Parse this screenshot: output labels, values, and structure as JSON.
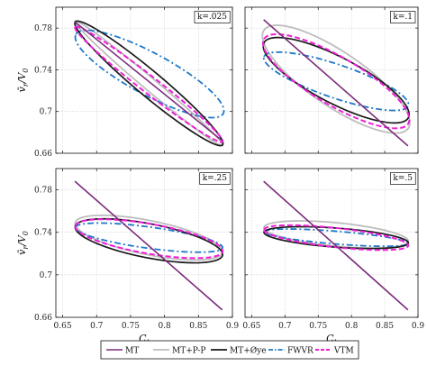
{
  "chart_data": {
    "type": "line",
    "xlabel": "C_t",
    "ylabel": "v̄_r/V_0",
    "xlim": [
      0.64,
      0.9
    ],
    "ylim": [
      0.66,
      0.8
    ],
    "xticks": [
      {
        "v": 0.65,
        "label": "0.65"
      },
      {
        "v": 0.7,
        "label": "0.7"
      },
      {
        "v": 0.75,
        "label": "0.75"
      },
      {
        "v": 0.8,
        "label": "0.8"
      },
      {
        "v": 0.85,
        "label": "0.85"
      },
      {
        "v": 0.9,
        "label": "0.9"
      }
    ],
    "yticks": [
      {
        "v": 0.66,
        "label": "0.66"
      },
      {
        "v": 0.7,
        "label": "0.7"
      },
      {
        "v": 0.74,
        "label": "0.74"
      },
      {
        "v": 0.78,
        "label": "0.78"
      }
    ],
    "grid": true,
    "legend_position": "bottom",
    "legend": [
      {
        "key": "MT",
        "label": "MT",
        "color": "#7b2d7e",
        "dash": "solid"
      },
      {
        "key": "MTPP",
        "label": "MT+P-P",
        "color": "#bdbdbd",
        "dash": "solid"
      },
      {
        "key": "MToye",
        "label": "MT+Øye",
        "color": "#1a1a1a",
        "dash": "solid"
      },
      {
        "key": "FWVR",
        "label": "FWVR",
        "color": "#1f78c8",
        "dash": "dashdot"
      },
      {
        "key": "VTM",
        "label": "VTM",
        "color": "#ee1fd6",
        "dash": "dashed"
      }
    ],
    "panels": [
      {
        "label": "k=.025",
        "series": {
          "MT": [
            [
              0.668,
              0.786
            ],
            [
              0.885,
              0.672
            ]
          ],
          "MTPP": {
            "center": [
              0.777,
              0.727
            ],
            "points": [
              [
                0.668,
                0.786
              ],
              [
                0.885,
                0.667
              ]
            ],
            "width": 0.006
          },
          "MToye": {
            "center": [
              0.777,
              0.727
            ],
            "points": [
              [
                0.668,
                0.786
              ],
              [
                0.885,
                0.668
              ]
            ],
            "width": 0.012
          },
          "FWVR": {
            "center": [
              0.778,
              0.736
            ],
            "points": [
              [
                0.668,
                0.774
              ],
              [
                0.885,
                0.698
              ]
            ],
            "width": 0.02
          },
          "VTM": {
            "center": [
              0.777,
              0.726
            ],
            "points": [
              [
                0.668,
                0.782
              ],
              [
                0.885,
                0.672
              ]
            ],
            "width": 0.008
          }
        }
      },
      {
        "label": "k=.1",
        "series": {
          "MT": [
            [
              0.668,
              0.788
            ],
            [
              0.885,
              0.667
            ]
          ],
          "MTPP": {
            "center": [
              0.777,
              0.731
            ],
            "points": [
              [
                0.668,
                0.778
              ],
              [
                0.885,
                0.684
              ]
            ],
            "width": 0.026
          },
          "MToye": {
            "center": [
              0.777,
              0.73
            ],
            "points": [
              [
                0.668,
                0.766
              ],
              [
                0.885,
                0.694
              ]
            ],
            "width": 0.022
          },
          "FWVR": {
            "center": [
              0.777,
              0.729
            ],
            "points": [
              [
                0.668,
                0.752
              ],
              [
                0.885,
                0.705
              ]
            ],
            "width": 0.016
          },
          "VTM": {
            "center": [
              0.777,
              0.729
            ],
            "points": [
              [
                0.668,
                0.77
              ],
              [
                0.885,
                0.689
              ]
            ],
            "width": 0.023
          }
        }
      },
      {
        "label": "k=.25",
        "series": {
          "MT": [
            [
              0.668,
              0.788
            ],
            [
              0.885,
              0.667
            ]
          ],
          "MTPP": {
            "center": [
              0.777,
              0.735
            ],
            "points": [
              [
                0.668,
                0.75
              ],
              [
                0.885,
                0.722
              ]
            ],
            "width": 0.016
          },
          "MToye": {
            "center": [
              0.777,
              0.732
            ],
            "points": [
              [
                0.668,
                0.746
              ],
              [
                0.885,
                0.719
              ]
            ],
            "width": 0.016
          },
          "FWVR": {
            "center": [
              0.777,
              0.735
            ],
            "points": [
              [
                0.668,
                0.746
              ],
              [
                0.885,
                0.727
              ]
            ],
            "width": 0.01
          },
          "VTM": {
            "center": [
              0.777,
              0.734
            ],
            "points": [
              [
                0.668,
                0.746
              ],
              [
                0.885,
                0.722
              ]
            ],
            "width": 0.014
          }
        }
      },
      {
        "label": "k=.5",
        "series": {
          "MT": [
            [
              0.668,
              0.788
            ],
            [
              0.885,
              0.667
            ]
          ],
          "MTPP": {
            "center": [
              0.777,
              0.738
            ],
            "points": [
              [
                0.668,
                0.745
              ],
              [
                0.885,
                0.732
              ]
            ],
            "width": 0.011
          },
          "MToye": {
            "center": [
              0.777,
              0.735
            ],
            "points": [
              [
                0.668,
                0.738
              ],
              [
                0.885,
                0.728
              ]
            ],
            "width": 0.009
          },
          "FWVR": {
            "center": [
              0.777,
              0.735
            ],
            "points": [
              [
                0.668,
                0.74
              ],
              [
                0.885,
                0.729
              ]
            ],
            "width": 0.006
          },
          "VTM": {
            "center": [
              0.777,
              0.735
            ],
            "points": [
              [
                0.668,
                0.742
              ],
              [
                0.885,
                0.727
              ]
            ],
            "width": 0.009
          }
        }
      }
    ]
  }
}
